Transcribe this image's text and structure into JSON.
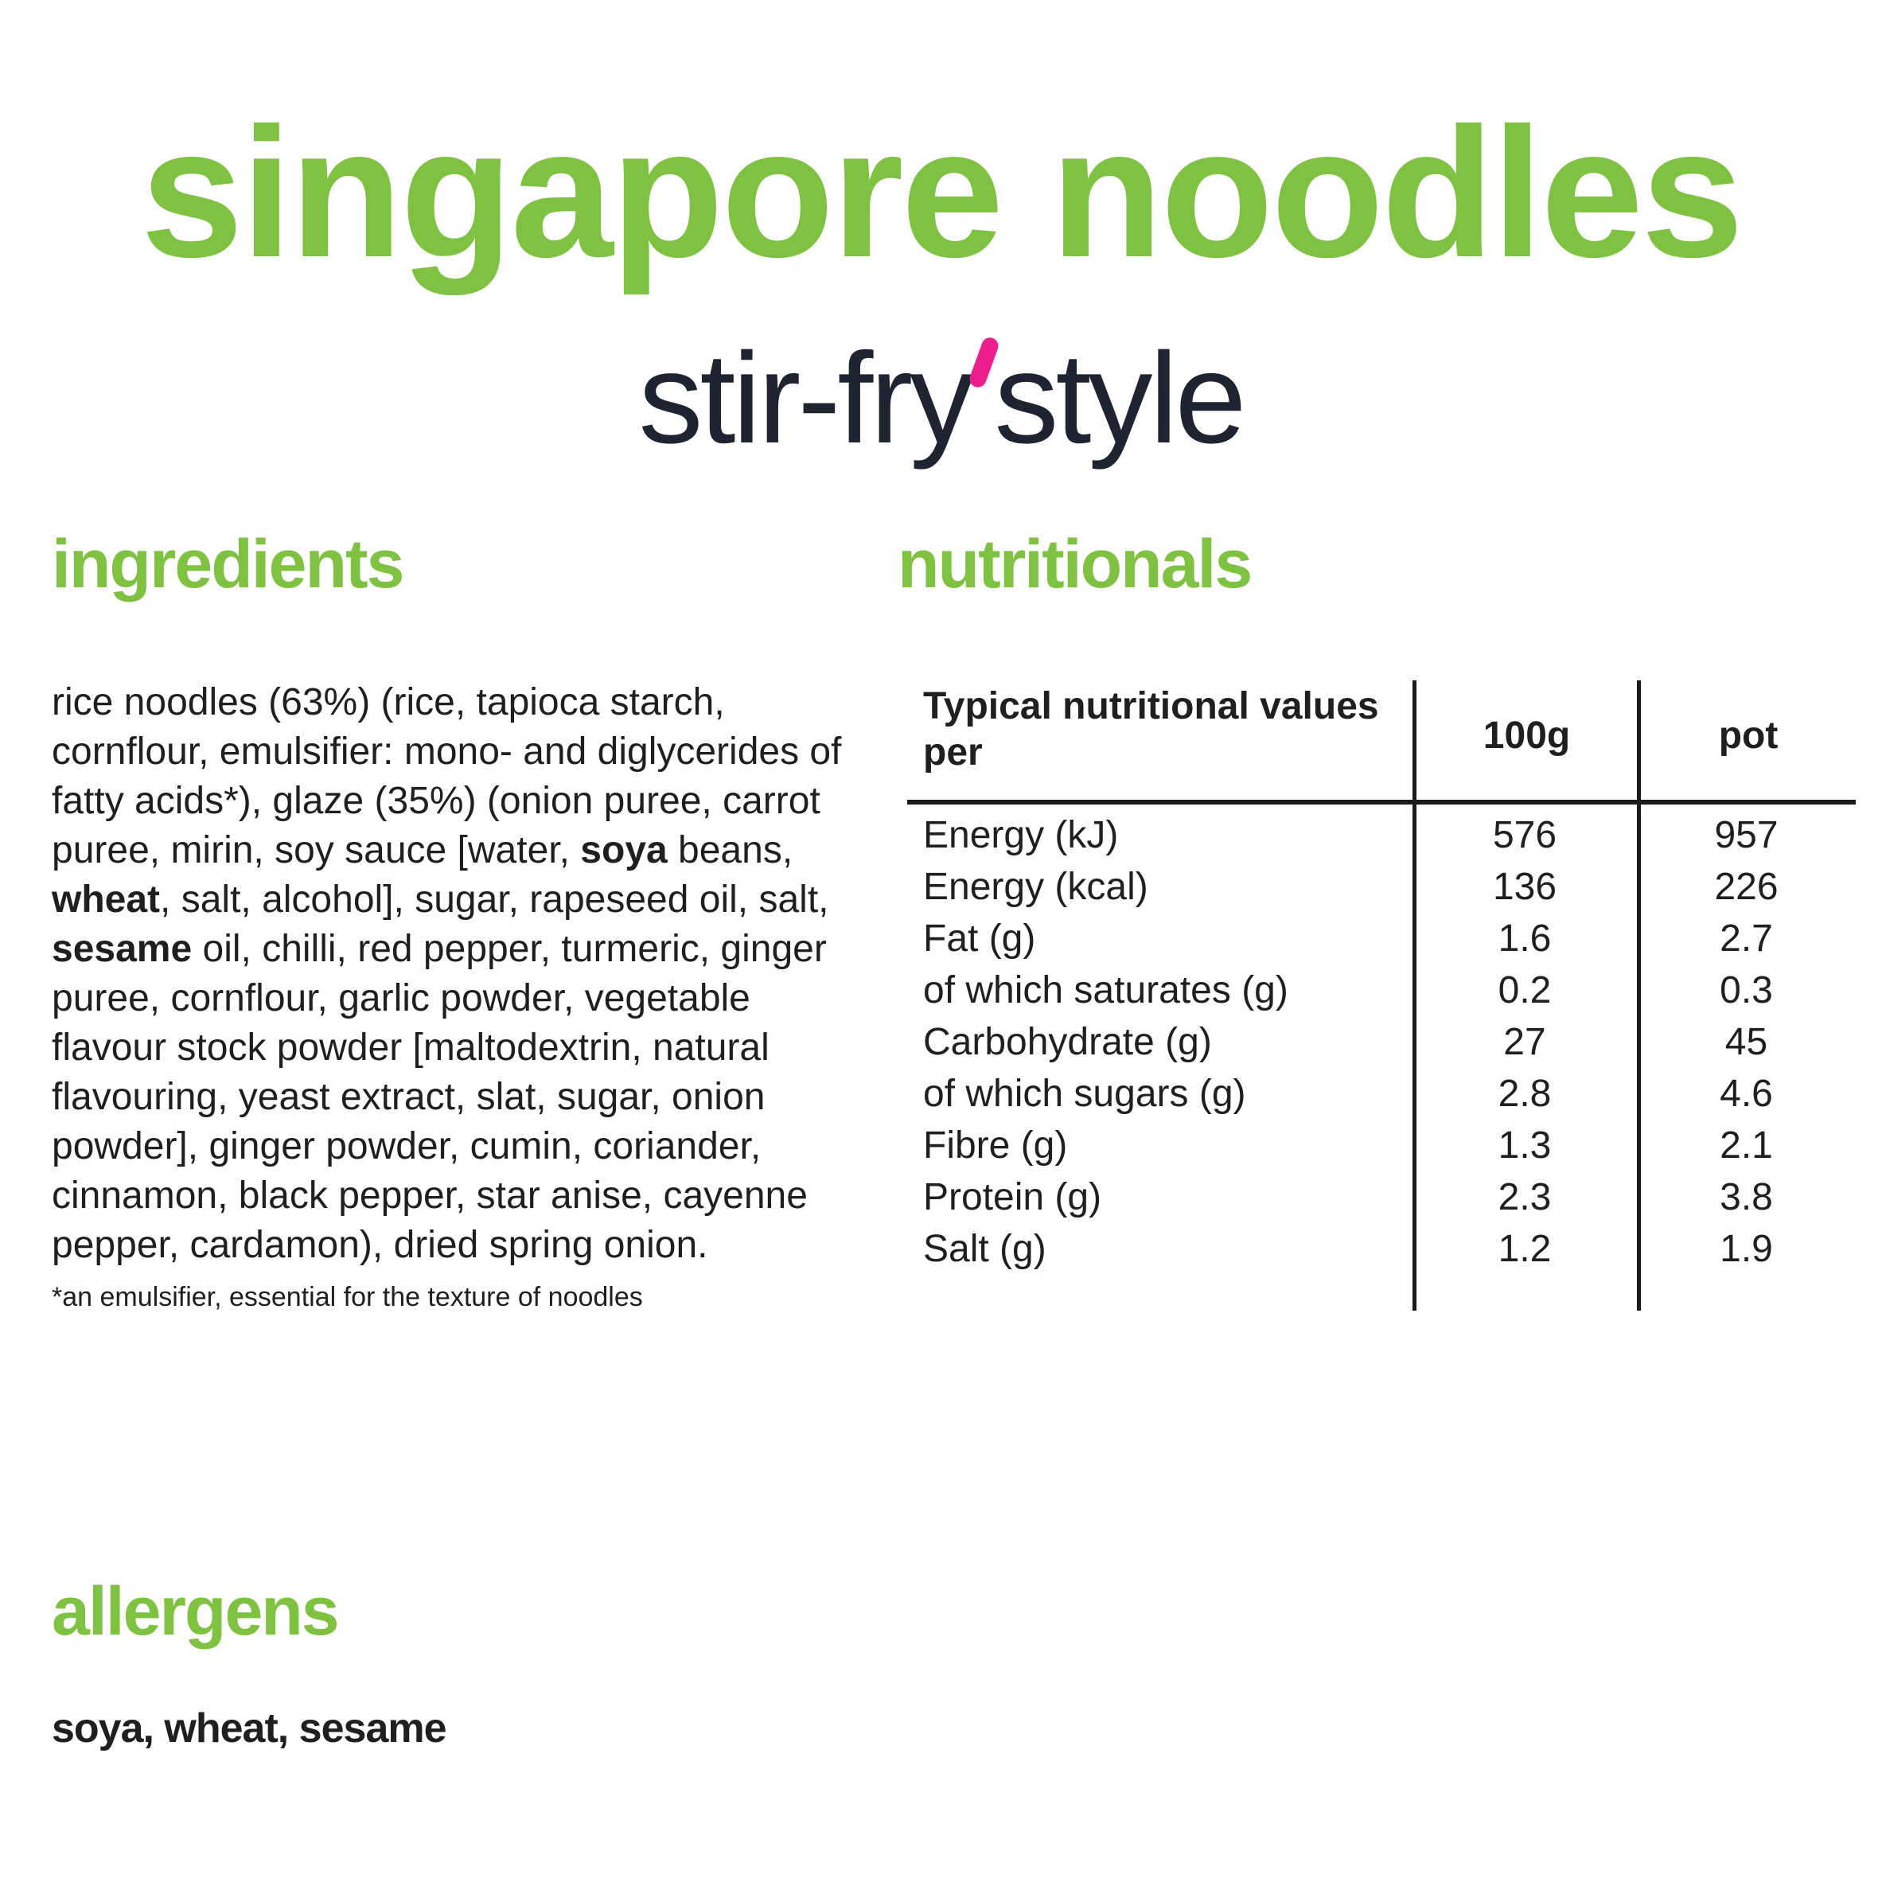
{
  "colors": {
    "green": "#7fc241",
    "dark_navy": "#1e2432",
    "pink": "#ec1e8e",
    "text": "#211e1f",
    "line": "#1a1a1a"
  },
  "header": {
    "title": "singapore noodles",
    "subtitle_before": "stir-fry",
    "subtitle_accent": "'",
    "subtitle_after": "style"
  },
  "ingredients": {
    "heading": "ingredients",
    "segments": [
      {
        "text": "rice noodles (63%) (rice, tapioca starch, cornflour, emulsifier: mono- and diglycerides of fatty acids*), glaze (35%) (onion puree, carrot puree, mirin, soy sauce [water, ",
        "bold": false
      },
      {
        "text": "soya",
        "bold": true
      },
      {
        "text": " beans, ",
        "bold": false
      },
      {
        "text": "wheat",
        "bold": true
      },
      {
        "text": ", salt, alcohol], sugar, rapeseed oil, salt, ",
        "bold": false
      },
      {
        "text": "sesame",
        "bold": true
      },
      {
        "text": " oil, chilli, red pepper, turmeric, ginger puree, cornflour, garlic powder, vegetable flavour stock powder [maltodextrin, natural flavouring, yeast extract, slat, sugar, onion powder], ginger powder, cumin, coriander, cinnamon, black pepper, star anise, cayenne pepper, cardamon), dried spring onion.",
        "bold": false
      }
    ],
    "footnote": "*an emulsifier, essential for the texture of noodles"
  },
  "nutritionals": {
    "heading": "nutritionals",
    "table": {
      "row_header": "Typical nutritional values per",
      "col_headers": [
        "100g",
        "pot"
      ],
      "rows": [
        {
          "label": "Energy (kJ)",
          "per_100g": "576",
          "per_pot": "957"
        },
        {
          "label": "Energy (kcal)",
          "per_100g": "136",
          "per_pot": "226"
        },
        {
          "label": "Fat (g)",
          "per_100g": "1.6",
          "per_pot": "2.7"
        },
        {
          "label": "of which saturates (g)",
          "per_100g": "0.2",
          "per_pot": "0.3"
        },
        {
          "label": "Carbohydrate (g)",
          "per_100g": "27",
          "per_pot": "45"
        },
        {
          "label": "of which sugars (g)",
          "per_100g": "2.8",
          "per_pot": "4.6"
        },
        {
          "label": "Fibre (g)",
          "per_100g": "1.3",
          "per_pot": "2.1"
        },
        {
          "label": "Protein (g)",
          "per_100g": "2.3",
          "per_pot": "3.8"
        },
        {
          "label": "Salt (g)",
          "per_100g": "1.2",
          "per_pot": "1.9"
        }
      ]
    }
  },
  "allergens": {
    "heading": "allergens",
    "text": "soya, wheat, sesame"
  }
}
